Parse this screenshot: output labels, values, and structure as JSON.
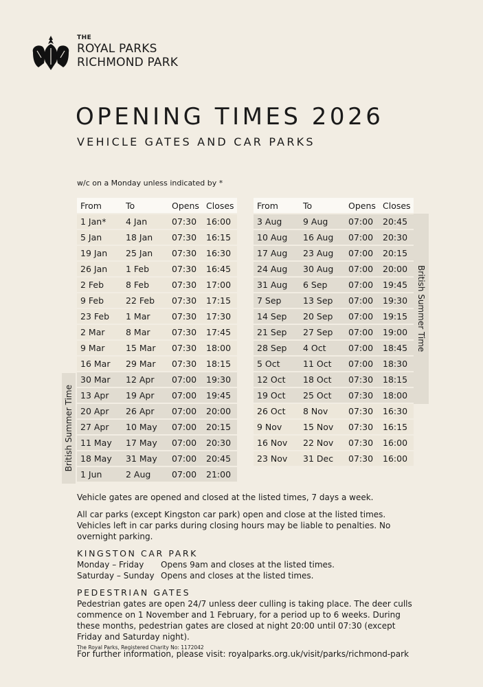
{
  "logo": {
    "line1": "THE",
    "line2": "ROYAL PARKS",
    "line3": "RICHMOND PARK"
  },
  "title": "OPENING TIMES 2026",
  "subtitle": "VEHICLE GATES AND CAR PARKS",
  "note": "w/c on a Monday unless indicated by *",
  "headers": {
    "from": "From",
    "to": "To",
    "opens": "Opens",
    "closes": "Closes"
  },
  "bst_label": "British Summer Time",
  "colors": {
    "background": "#f2ede3",
    "row": "#ede7da",
    "bst_row": "#e1dcd1"
  },
  "left_table": [
    {
      "from": "1 Jan*",
      "to": "4 Jan",
      "opens": "07:30",
      "closes": "16:00",
      "bst": false
    },
    {
      "from": "5 Jan",
      "to": "18 Jan",
      "opens": "07:30",
      "closes": "16:15",
      "bst": false
    },
    {
      "from": "19 Jan",
      "to": "25 Jan",
      "opens": "07:30",
      "closes": "16:30",
      "bst": false
    },
    {
      "from": "26 Jan",
      "to": "1 Feb",
      "opens": "07:30",
      "closes": "16:45",
      "bst": false
    },
    {
      "from": "2 Feb",
      "to": "8 Feb",
      "opens": "07:30",
      "closes": "17:00",
      "bst": false
    },
    {
      "from": "9 Feb",
      "to": "22 Feb",
      "opens": "07:30",
      "closes": "17:15",
      "bst": false
    },
    {
      "from": "23 Feb",
      "to": "1 Mar",
      "opens": "07:30",
      "closes": "17:30",
      "bst": false
    },
    {
      "from": "2 Mar",
      "to": "8 Mar",
      "opens": "07:30",
      "closes": "17:45",
      "bst": false
    },
    {
      "from": "9 Mar",
      "to": "15 Mar",
      "opens": "07:30",
      "closes": "18:00",
      "bst": false
    },
    {
      "from": "16 Mar",
      "to": "29 Mar",
      "opens": "07:30",
      "closes": "18:15",
      "bst": false
    },
    {
      "from": "30 Mar",
      "to": "12 Apr",
      "opens": "07:00",
      "closes": "19:30",
      "bst": true
    },
    {
      "from": "13 Apr",
      "to": "19 Apr",
      "opens": "07:00",
      "closes": "19:45",
      "bst": true
    },
    {
      "from": "20 Apr",
      "to": "26 Apr",
      "opens": "07:00",
      "closes": "20:00",
      "bst": true
    },
    {
      "from": "27 Apr",
      "to": "10 May",
      "opens": "07:00",
      "closes": "20:15",
      "bst": true
    },
    {
      "from": "11 May",
      "to": "17 May",
      "opens": "07:00",
      "closes": "20:30",
      "bst": true
    },
    {
      "from": "18 May",
      "to": "31 May",
      "opens": "07:00",
      "closes": "20:45",
      "bst": true
    },
    {
      "from": "1 Jun",
      "to": "2 Aug",
      "opens": "07:00",
      "closes": "21:00",
      "bst": true
    }
  ],
  "right_table": [
    {
      "from": "3 Aug",
      "to": "9 Aug",
      "opens": "07:00",
      "closes": "20:45",
      "bst": true
    },
    {
      "from": "10 Aug",
      "to": "16 Aug",
      "opens": "07:00",
      "closes": "20:30",
      "bst": true
    },
    {
      "from": "17 Aug",
      "to": "23 Aug",
      "opens": "07:00",
      "closes": "20:15",
      "bst": true
    },
    {
      "from": "24 Aug",
      "to": "30 Aug",
      "opens": "07:00",
      "closes": "20:00",
      "bst": true
    },
    {
      "from": "31 Aug",
      "to": "6 Sep",
      "opens": "07:00",
      "closes": "19:45",
      "bst": true
    },
    {
      "from": "7 Sep",
      "to": "13 Sep",
      "opens": "07:00",
      "closes": "19:30",
      "bst": true
    },
    {
      "from": "14 Sep",
      "to": "20 Sep",
      "opens": "07:00",
      "closes": "19:15",
      "bst": true
    },
    {
      "from": "21 Sep",
      "to": "27 Sep",
      "opens": "07:00",
      "closes": "19:00",
      "bst": true
    },
    {
      "from": "28 Sep",
      "to": "4 Oct",
      "opens": "07:00",
      "closes": "18:45",
      "bst": true
    },
    {
      "from": "5 Oct",
      "to": "11 Oct",
      "opens": "07:00",
      "closes": "18:30",
      "bst": true
    },
    {
      "from": "12 Oct",
      "to": "18 Oct",
      "opens": "07:30",
      "closes": "18:15",
      "bst": true
    },
    {
      "from": "19 Oct",
      "to": "25 Oct",
      "opens": "07:30",
      "closes": "18:00",
      "bst": true
    },
    {
      "from": "26 Oct",
      "to": "8 Nov",
      "opens": "07:30",
      "closes": "16:30",
      "bst": false
    },
    {
      "from": "9 Nov",
      "to": "15 Nov",
      "opens": "07:30",
      "closes": "16:15",
      "bst": false
    },
    {
      "from": "16 Nov",
      "to": "22 Nov",
      "opens": "07:30",
      "closes": "16:00",
      "bst": false
    },
    {
      "from": "23 Nov",
      "to": "31 Dec",
      "opens": "07:30",
      "closes": "16:00",
      "bst": false
    }
  ],
  "info": {
    "p1": "Vehicle gates are opened and closed at the listed times, 7 days a week.",
    "p2": "All car parks (except Kingston car park) open and close at the listed times. Vehicles left in car parks during closing hours may be liable to penalties. No overnight parking.",
    "kingston": {
      "heading": "KINGSTON CAR PARK",
      "rows": [
        {
          "days": "Monday – Friday",
          "text": "Opens 9am and closes at the listed times."
        },
        {
          "days": "Saturday – Sunday",
          "text": "Opens and closes at the listed times."
        }
      ]
    },
    "pedestrian": {
      "heading": "PEDESTRIAN GATES",
      "text": "Pedestrian gates are open 24/7 unless deer culling is taking place. The deer culls commence on 1 November and 1 February, for a period up to 6 weeks. During these months, pedestrian gates are closed at night 20:00 until 07:30 (except Friday and Saturday night)."
    },
    "further": "For further information, please visit: royalparks.org.uk/visit/parks/richmond-park"
  },
  "footer": "The Royal Parks, Registered Charity No: 1172042"
}
